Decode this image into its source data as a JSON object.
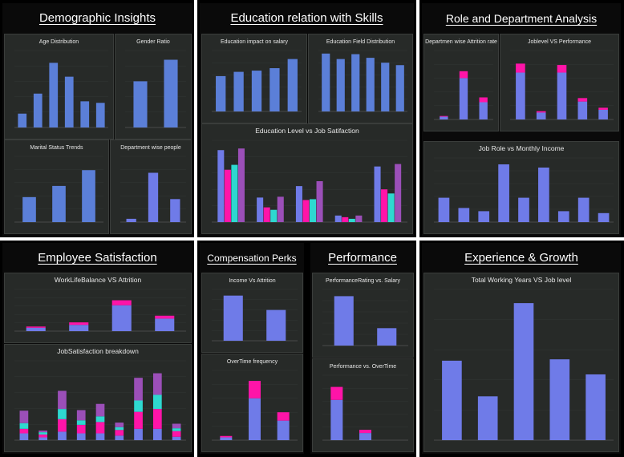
{
  "sections": {
    "demographic": "Demographic Insights",
    "education": "Education relation with Skills",
    "role": "Role and Department Analysis",
    "satisfaction": "Employee Satisfaction",
    "compensation": "Compensation Perks",
    "performance": "Performance",
    "experience": "Experience & Growth"
  },
  "colors": {
    "blue": "#5b7fd8",
    "periwinkle": "#6f7be8",
    "magenta": "#ff14a8",
    "cyan": "#2ed8d0",
    "purple": "#9b4fb8",
    "panel": "#272a28"
  },
  "chart_data": [
    {
      "id": "age",
      "type": "bar",
      "title": "Age Distribution",
      "values": [
        9,
        22,
        42,
        33,
        17,
        16
      ],
      "ylim": [
        0,
        50
      ],
      "color": "blue"
    },
    {
      "id": "gender",
      "type": "bar",
      "title": "Gender Ratio",
      "values": [
        60,
        88
      ],
      "ylim": [
        0,
        100
      ],
      "color": "blue"
    },
    {
      "id": "marital",
      "type": "bar",
      "title": "Marital Status Trends",
      "values": [
        38,
        55,
        79
      ],
      "ylim": [
        0,
        100
      ],
      "color": "blue"
    },
    {
      "id": "dept",
      "type": "bar",
      "title": "Department wise people",
      "values": [
        5,
        75,
        35
      ],
      "ylim": [
        0,
        100
      ],
      "color": "periwinkle"
    },
    {
      "id": "edu_salary",
      "type": "bar",
      "title": "Education impact on salary",
      "values": [
        58,
        65,
        67,
        71,
        86
      ],
      "ylim": [
        0,
        100
      ],
      "color": "blue"
    },
    {
      "id": "edu_field",
      "type": "bar",
      "title": "Education Field Distribution",
      "values": [
        95,
        86,
        94,
        88,
        80,
        76
      ],
      "ylim": [
        0,
        100
      ],
      "color": "blue"
    },
    {
      "id": "edu_jobsat",
      "type": "bar",
      "title": "Education Level vs Job Satifaction",
      "series": [
        {
          "color": "periwinkle",
          "values": [
            88,
            30,
            44,
            8,
            68
          ]
        },
        {
          "color": "magenta",
          "values": [
            64,
            18,
            27,
            6,
            40
          ]
        },
        {
          "color": "cyan",
          "values": [
            70,
            15,
            28,
            4,
            35
          ]
        },
        {
          "color": "purple",
          "values": [
            90,
            31,
            50,
            8,
            71
          ]
        }
      ],
      "ylim": [
        0,
        100
      ]
    },
    {
      "id": "dept_attr",
      "type": "bar",
      "stacked": true,
      "title": "Departmen wise Attrition rate",
      "stacks": [
        [
          4,
          1
        ],
        [
          60,
          10
        ],
        [
          25,
          7
        ]
      ],
      "ylim": [
        0,
        100
      ],
      "stack_colors": [
        "periwinkle",
        "magenta"
      ]
    },
    {
      "id": "joblevel_perf",
      "type": "bar",
      "stacked": true,
      "title": "Joblevel VS Performance",
      "stacks": [
        [
          68,
          13
        ],
        [
          10,
          2
        ],
        [
          68,
          11
        ],
        [
          26,
          5
        ],
        [
          14,
          3
        ]
      ],
      "ylim": [
        0,
        100
      ],
      "stack_colors": [
        "periwinkle",
        "magenta"
      ]
    },
    {
      "id": "jobrole_income",
      "type": "bar",
      "title": "Job Role vs Monthly Income",
      "values": [
        38,
        22,
        17,
        90,
        38,
        85,
        17,
        38,
        14
      ],
      "ylim": [
        0,
        100
      ],
      "color": "periwinkle"
    },
    {
      "id": "wlb_attr",
      "type": "bar",
      "stacked": true,
      "title": "WorkLifeBalance VS Attrition",
      "stacks": [
        [
          8,
          3
        ],
        [
          15,
          6
        ],
        [
          62,
          12
        ],
        [
          30,
          7
        ]
      ],
      "ylim": [
        0,
        100
      ],
      "stack_colors": [
        "periwinkle",
        "magenta"
      ]
    },
    {
      "id": "jobsat_break",
      "type": "bar",
      "stacked": true,
      "title": "JobSatisfaction breakdown",
      "stacks": [
        [
          12,
          8,
          10,
          22
        ],
        [
          5,
          5,
          4,
          3
        ],
        [
          15,
          22,
          18,
          32
        ],
        [
          12,
          15,
          8,
          18
        ],
        [
          12,
          20,
          10,
          22
        ],
        [
          8,
          10,
          5,
          8
        ],
        [
          20,
          30,
          20,
          40
        ],
        [
          20,
          35,
          25,
          38
        ],
        [
          6,
          10,
          5,
          8
        ]
      ],
      "ylim": [
        0,
        140
      ],
      "stack_colors": [
        "periwinkle",
        "magenta",
        "cyan",
        "purple"
      ]
    },
    {
      "id": "income_attr",
      "type": "bar",
      "title": "Income Vs Attrition",
      "values": [
        88,
        60
      ],
      "ylim": [
        0,
        100
      ],
      "color": "periwinkle"
    },
    {
      "id": "overtime",
      "type": "bar",
      "stacked": true,
      "title": "OverTime frequency",
      "stacks": [
        [
          4,
          2
        ],
        [
          60,
          25
        ],
        [
          28,
          12
        ]
      ],
      "ylim": [
        0,
        100
      ],
      "stack_colors": [
        "periwinkle",
        "magenta"
      ]
    },
    {
      "id": "perf_salary",
      "type": "bar",
      "title": "PerformanceRating vs. Salary",
      "values": [
        88,
        31
      ],
      "ylim": [
        0,
        100
      ],
      "color": "periwinkle"
    },
    {
      "id": "perf_overtime",
      "type": "bar",
      "stacked": true,
      "title": "Performance vs. OverTime",
      "stacks": [
        [
          62,
          20
        ],
        [
          11,
          5
        ],
        [
          0,
          0
        ]
      ],
      "ylim": [
        0,
        100
      ],
      "stack_colors": [
        "periwinkle",
        "magenta"
      ]
    },
    {
      "id": "twy_joblevel",
      "type": "bar",
      "title": "Total Working Years VS Job level",
      "values": [
        58,
        32,
        100,
        59,
        48
      ],
      "ylim": [
        0,
        110
      ],
      "color": "periwinkle"
    }
  ]
}
